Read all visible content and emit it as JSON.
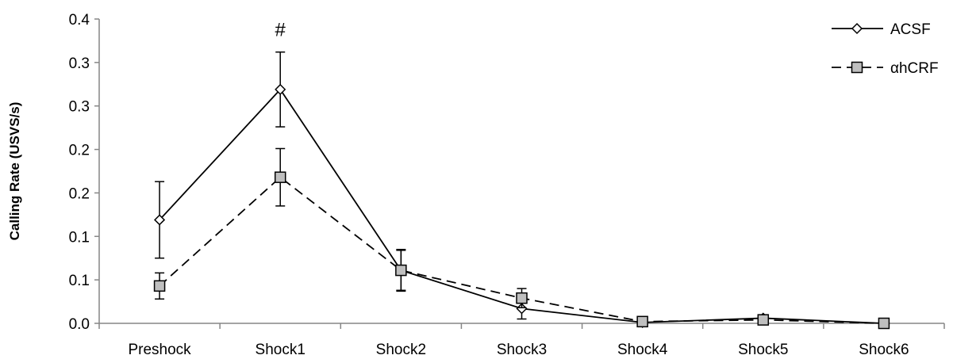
{
  "chart_data": {
    "type": "line",
    "title": "",
    "xlabel": "",
    "ylabel": "Calling Rate (USVS/s)",
    "categories": [
      "Preshock",
      "Shock1",
      "Shock2",
      "Shock3",
      "Shock4",
      "Shock5",
      "Shock6"
    ],
    "y_tick_labels": [
      "0.0",
      "0.1",
      "0.1",
      "0.2",
      "0.2",
      "0.3",
      "0.3",
      "0.4"
    ],
    "ylim": [
      0,
      0.35
    ],
    "grid": false,
    "legend_position": "top-right",
    "series": [
      {
        "name": "ACSF",
        "line_style": "solid",
        "marker": "open-diamond",
        "color": "#000000",
        "values": [
          0.119,
          0.269,
          0.061,
          0.017,
          0.001,
          0.006,
          0.0
        ],
        "error": [
          0.044,
          0.043,
          0.024,
          0.012,
          0.002,
          0.003,
          0.0
        ]
      },
      {
        "name": "αhCRF",
        "line_style": "dashed",
        "marker": "filled-square",
        "color": "#000000",
        "marker_fill": "#bfbfbf",
        "values": [
          0.043,
          0.168,
          0.061,
          0.029,
          0.002,
          0.004,
          0.0
        ],
        "error": [
          0.015,
          0.033,
          0.023,
          0.011,
          0.002,
          0.002,
          0.0
        ]
      }
    ],
    "annotations": [
      {
        "text": "#",
        "category": "Shock1"
      }
    ]
  }
}
